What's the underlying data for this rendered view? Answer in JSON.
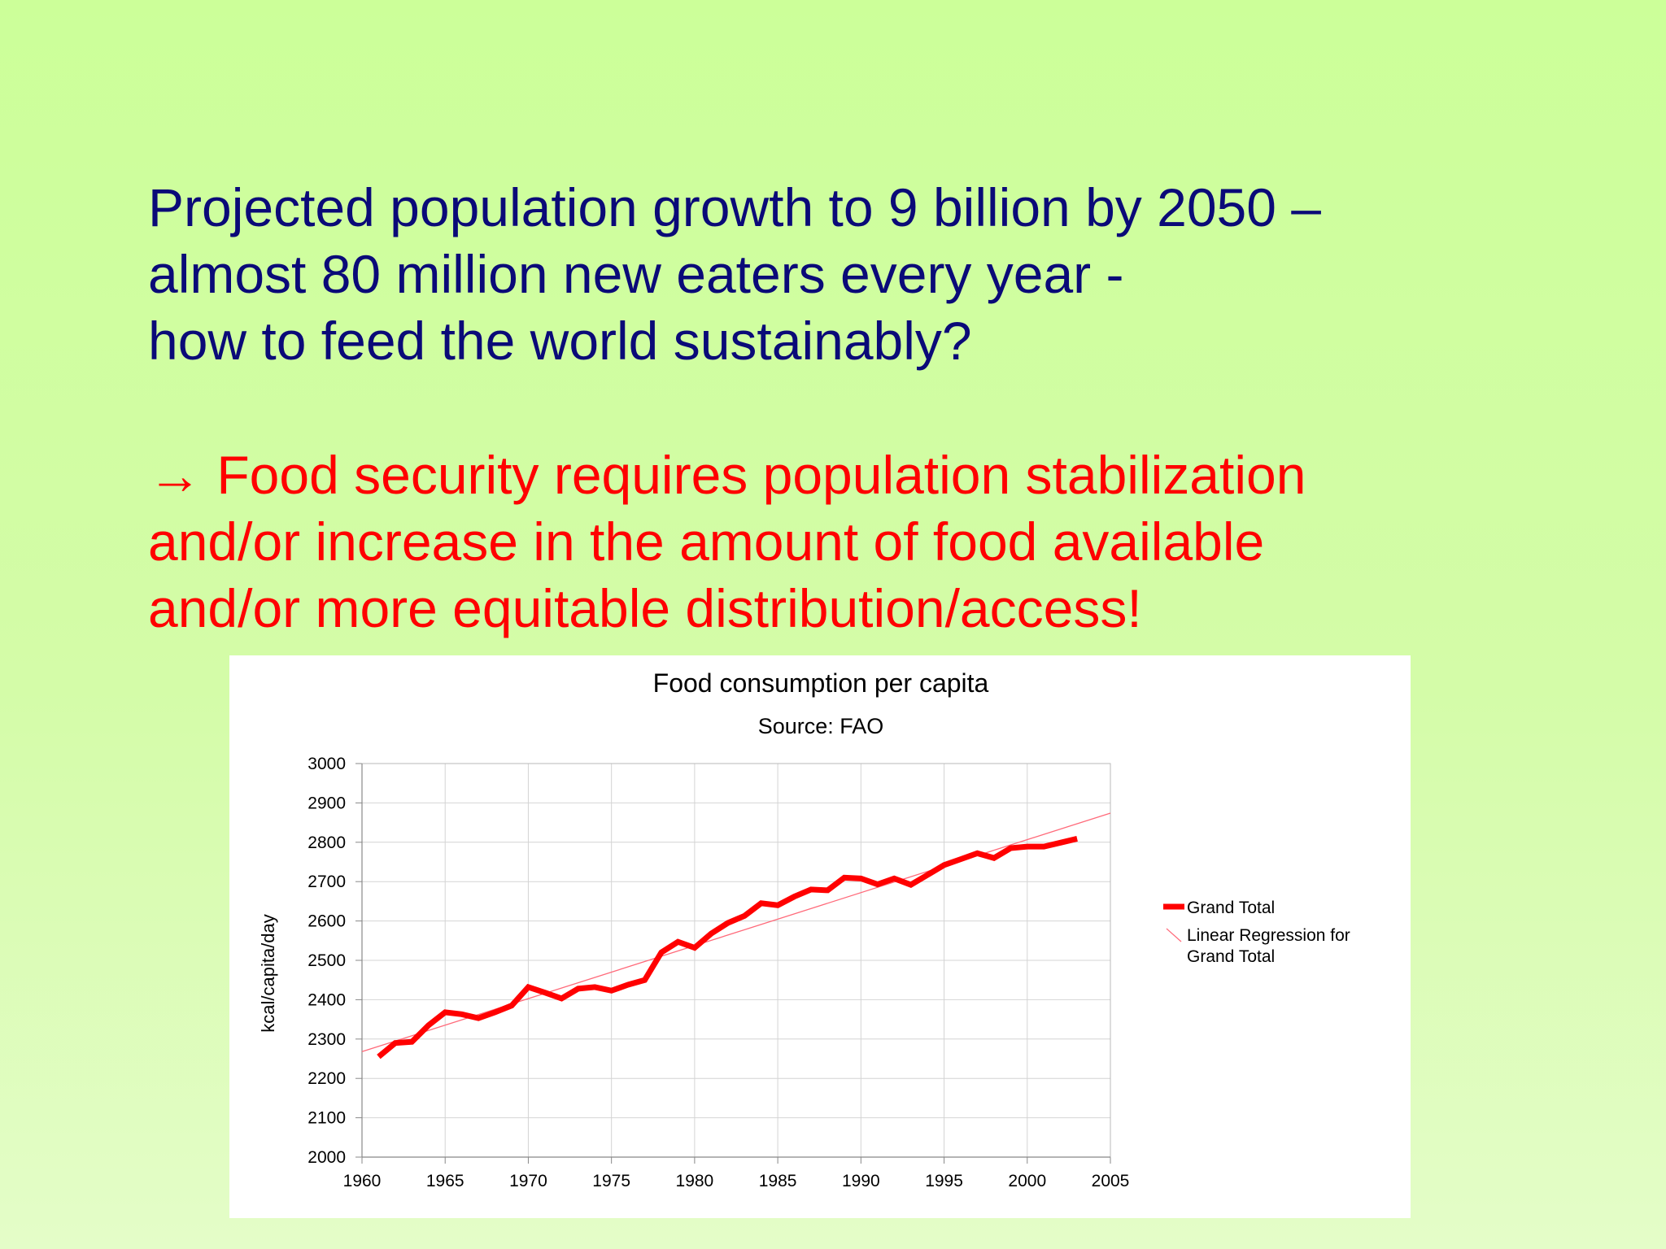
{
  "slide": {
    "question_lines": [
      "Projected population growth to 9 billion by 2050 –",
      "almost 80 million new eaters every year -",
      "how to feed the world sustainably?"
    ],
    "answer_lines": [
      "→ Food security requires population stabilization",
      "and/or increase in the amount of food available",
      "and/or more equitable distribution/access!"
    ]
  },
  "chart_data": {
    "type": "line",
    "title": "Food consumption per capita",
    "subtitle": "Source: FAO",
    "xlabel": "",
    "ylabel": "kcal/capita/day",
    "xlim": [
      1960,
      2005
    ],
    "ylim": [
      2000,
      3000
    ],
    "x_ticks": [
      1960,
      1965,
      1970,
      1975,
      1980,
      1985,
      1990,
      1995,
      2000,
      2005
    ],
    "y_ticks": [
      2000,
      2100,
      2200,
      2300,
      2400,
      2500,
      2600,
      2700,
      2800,
      2900,
      3000
    ],
    "grid": true,
    "legend_position": "right",
    "series": [
      {
        "name": "Grand Total",
        "color": "#ff0000",
        "x": [
          1961,
          1962,
          1963,
          1964,
          1965,
          1966,
          1967,
          1968,
          1969,
          1970,
          1971,
          1972,
          1973,
          1974,
          1975,
          1976,
          1977,
          1978,
          1979,
          1980,
          1981,
          1982,
          1983,
          1984,
          1985,
          1986,
          1987,
          1988,
          1989,
          1990,
          1991,
          1992,
          1993,
          1994,
          1995,
          1996,
          1997,
          1998,
          1999,
          2000,
          2001,
          2002,
          2003
        ],
        "y": [
          2255,
          2290,
          2293,
          2335,
          2368,
          2363,
          2353,
          2368,
          2385,
          2432,
          2418,
          2403,
          2428,
          2432,
          2423,
          2438,
          2450,
          2520,
          2547,
          2532,
          2568,
          2595,
          2613,
          2645,
          2640,
          2662,
          2680,
          2678,
          2710,
          2708,
          2693,
          2708,
          2692,
          2717,
          2742,
          2757,
          2772,
          2760,
          2785,
          2789,
          2789,
          2799,
          2809
        ]
      },
      {
        "name": "Linear Regression for Grand Total",
        "color": "#ff6a7a",
        "x": [
          1960,
          2005
        ],
        "y": [
          2268,
          2874
        ]
      }
    ]
  }
}
